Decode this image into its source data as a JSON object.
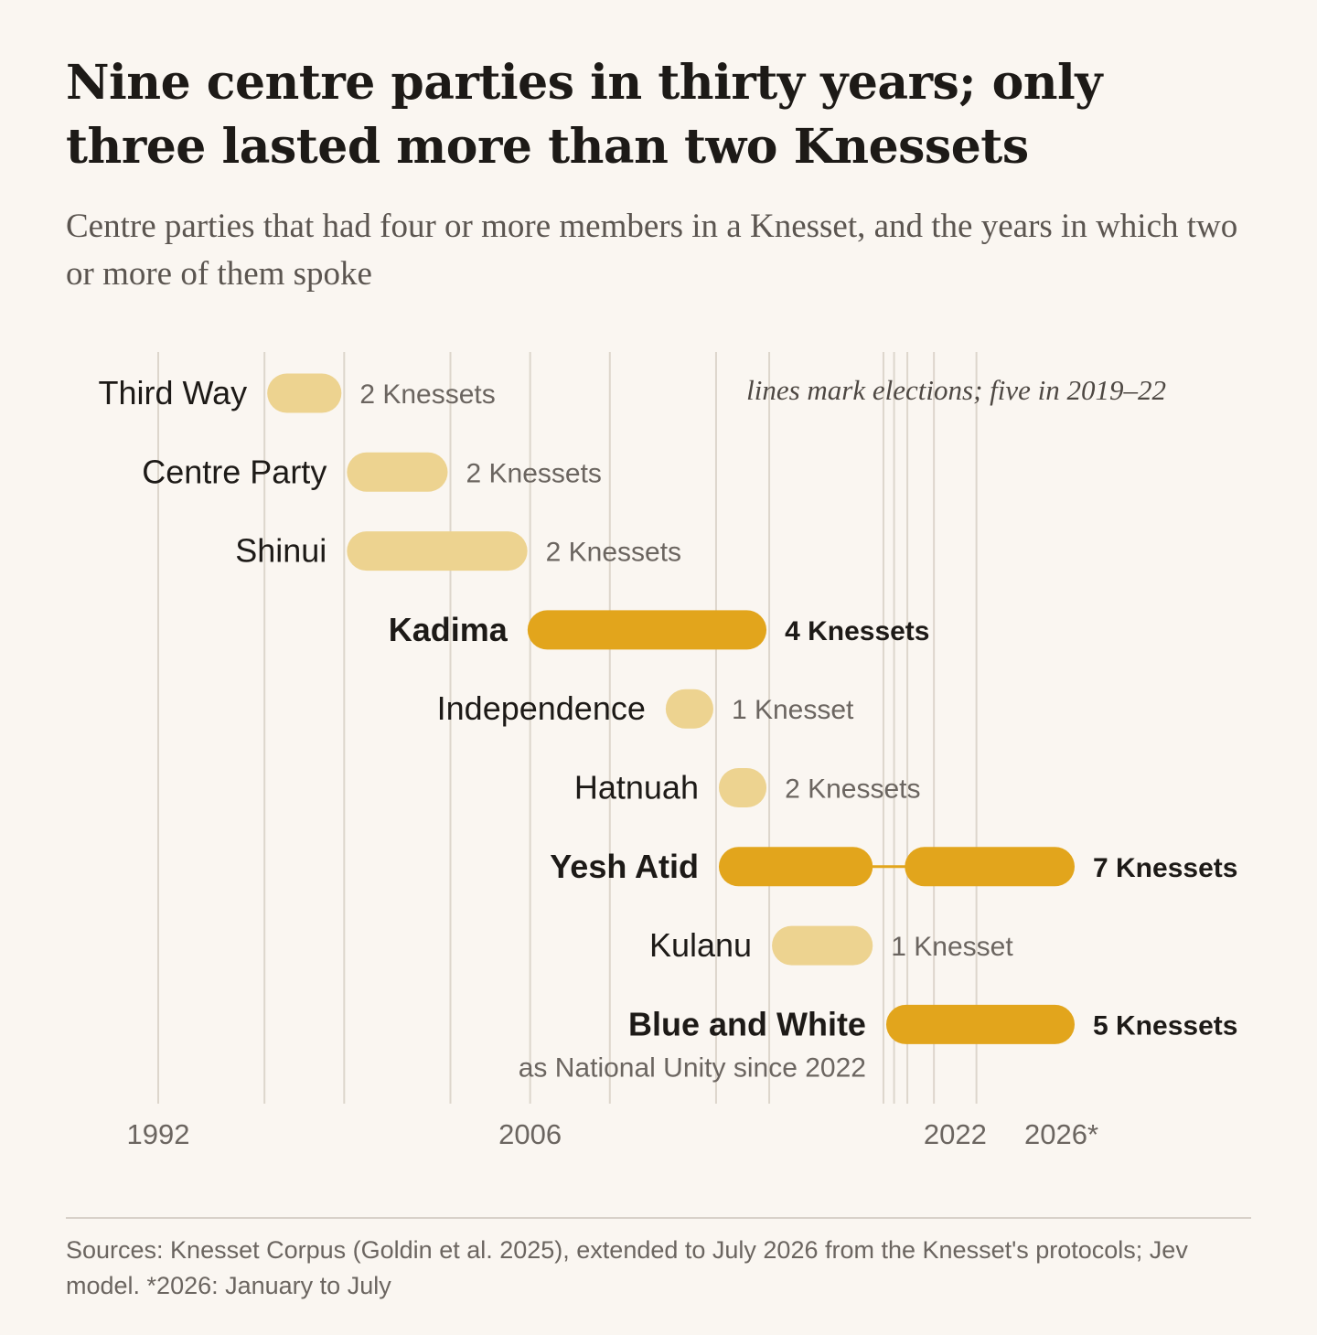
{
  "title": "Nine centre parties in thirty years; only three lasted more than two Knessets",
  "subtitle": "Centre parties that had four or more members in a Knesset, and the years in which two or more of them spoke",
  "sources": "Sources: Knesset Corpus (Goldin et al. 2025), extended to July 2026 from the Knesset's protocols; Jev model. *2026: January to July",
  "colors": {
    "background": "#faf6f1",
    "bar_light": "#edd390",
    "bar_dark": "#e2a51c",
    "gridline": "#ddd6cc",
    "text_dark": "#1d1a17",
    "text_muted": "#6b6560"
  },
  "chart_data": {
    "type": "range-bar",
    "annotation": "lines mark elections; five in 2019–22",
    "x_ticks": [
      {
        "value": 1992,
        "label": "1992"
      },
      {
        "value": 2006,
        "label": "2006"
      },
      {
        "value": 2022,
        "label": "2022"
      },
      {
        "value": 2026,
        "label": "2026*"
      }
    ],
    "xlim": [
      1992,
      2026.6
    ],
    "election_years": [
      1992,
      1996,
      1999,
      2003,
      2006,
      2009,
      2013,
      2015,
      2019.3,
      2019.7,
      2020.2,
      2021.2,
      2022.8
    ],
    "parties": [
      {
        "name": "Third Way",
        "segments": [
          [
            1996,
            1999
          ]
        ],
        "label": "2 Knessets",
        "highlight": false
      },
      {
        "name": "Centre Party",
        "segments": [
          [
            1999,
            2003
          ]
        ],
        "label": "2 Knessets",
        "highlight": false
      },
      {
        "name": "Shinui",
        "segments": [
          [
            1999,
            2006
          ]
        ],
        "label": "2 Knessets",
        "highlight": false
      },
      {
        "name": "Kadima",
        "segments": [
          [
            2005.8,
            2015
          ]
        ],
        "label": "4 Knessets",
        "highlight": true
      },
      {
        "name": "Independence",
        "segments": [
          [
            2011,
            2013
          ]
        ],
        "label": "1 Knesset",
        "highlight": false
      },
      {
        "name": "Hatnuah",
        "segments": [
          [
            2013,
            2015
          ]
        ],
        "label": "2 Knessets",
        "highlight": false
      },
      {
        "name": "Yesh Atid",
        "segments": [
          [
            2013,
            2019
          ],
          [
            2020,
            2026.6
          ]
        ],
        "label": "7 Knessets",
        "highlight": true
      },
      {
        "name": "Kulanu",
        "segments": [
          [
            2015,
            2019
          ]
        ],
        "label": "1 Knesset",
        "highlight": false
      },
      {
        "name": "Blue and White",
        "segments": [
          [
            2019.3,
            2026.6
          ]
        ],
        "label": "5 Knessets",
        "highlight": true,
        "note": "as National Unity since 2022"
      }
    ]
  }
}
